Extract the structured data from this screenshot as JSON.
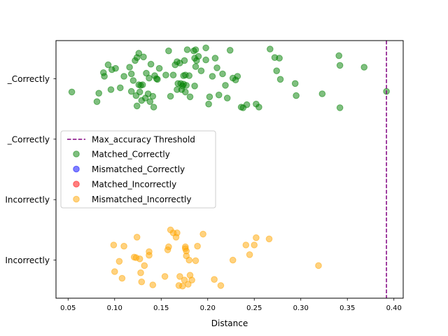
{
  "chart_data": {
    "type": "scatter",
    "title": "",
    "xlabel": "Distance",
    "ylabel": "",
    "xlim": [
      0.037,
      0.41
    ],
    "ylim": [
      -0.63,
      3.63
    ],
    "xticks": [
      0.05,
      0.1,
      0.15,
      0.2,
      0.25,
      0.3,
      0.35,
      0.4
    ],
    "xtick_labels": [
      "0.05",
      "0.10",
      "0.15",
      "0.20",
      "0.25",
      "0.30",
      "0.35",
      "0.40"
    ],
    "ytick_labels": [
      "Mismatched_Incorrectly",
      "Matched_Incorrectly",
      "Mismatched_Correctly",
      "Matched_Correctly"
    ],
    "ytick_visible_labels": [
      "Incorrectly",
      "Incorrectly",
      "_Correctly",
      "_Correctly"
    ],
    "grid": false,
    "legend_position": "center-left",
    "threshold": {
      "name": "Max_accuracy Threshold",
      "x": 0.392,
      "color": "#800080",
      "style": "dashed"
    },
    "series": [
      {
        "name": "Matched_Correctly",
        "color": "#008000",
        "category_index": 3,
        "points": [
          [
            0.054,
            -0.22
          ],
          [
            0.081,
            -0.38
          ],
          [
            0.083,
            -0.24
          ],
          [
            0.088,
            0.1
          ],
          [
            0.089,
            0.04
          ],
          [
            0.093,
            0.23
          ],
          [
            0.096,
            -0.18
          ],
          [
            0.097,
            0.15
          ],
          [
            0.101,
            0.17
          ],
          [
            0.106,
            -0.15
          ],
          [
            0.11,
            0.04
          ],
          [
            0.116,
            0.19
          ],
          [
            0.118,
            -0.21
          ],
          [
            0.118,
            0.08
          ],
          [
            0.12,
            -0.03
          ],
          [
            0.122,
            0.3
          ],
          [
            0.123,
            -0.28
          ],
          [
            0.124,
            0.35
          ],
          [
            0.124,
            -0.45
          ],
          [
            0.126,
            0.42
          ],
          [
            0.126,
            -0.1
          ],
          [
            0.127,
            -0.22
          ],
          [
            0.128,
            -0.11
          ],
          [
            0.129,
            -0.36
          ],
          [
            0.13,
            -0.1
          ],
          [
            0.131,
            0.36
          ],
          [
            0.133,
            -0.32
          ],
          [
            0.134,
            0.09
          ],
          [
            0.136,
            -0.25
          ],
          [
            0.137,
            0.01
          ],
          [
            0.138,
            -0.38
          ],
          [
            0.139,
            0.24
          ],
          [
            0.141,
            -0.29
          ],
          [
            0.142,
            -0.47
          ],
          [
            0.143,
            0.05
          ],
          [
            0.145,
            0.0
          ],
          [
            0.146,
            -0.01
          ],
          [
            0.148,
            0.17
          ],
          [
            0.155,
            0.06
          ],
          [
            0.158,
            0.46
          ],
          [
            0.16,
            -0.29
          ],
          [
            0.163,
            0.06
          ],
          [
            0.165,
            0.23
          ],
          [
            0.167,
            -0.18
          ],
          [
            0.167,
            0.28
          ],
          [
            0.168,
            -0.08
          ],
          [
            0.17,
            0.26
          ],
          [
            0.171,
            -0.08
          ],
          [
            0.172,
            -0.18
          ],
          [
            0.173,
            -0.12
          ],
          [
            0.174,
            0.05
          ],
          [
            0.174,
            -0.09
          ],
          [
            0.175,
            0.3
          ],
          [
            0.176,
            -0.22
          ],
          [
            0.176,
            0.06
          ],
          [
            0.177,
            -0.11
          ],
          [
            0.178,
            0.48
          ],
          [
            0.18,
            0.05
          ],
          [
            0.181,
            -0.3
          ],
          [
            0.185,
            0.46
          ],
          [
            0.186,
            -0.12
          ],
          [
            0.186,
            0.34
          ],
          [
            0.187,
            0.48
          ],
          [
            0.187,
            0.2
          ],
          [
            0.188,
            0.3
          ],
          [
            0.19,
            0.37
          ],
          [
            0.193,
            0.13
          ],
          [
            0.198,
            0.51
          ],
          [
            0.198,
            0.31
          ],
          [
            0.201,
            -0.42
          ],
          [
            0.202,
            -0.3
          ],
          [
            0.205,
            0.04
          ],
          [
            0.208,
            0.34
          ],
          [
            0.21,
            0.18
          ],
          [
            0.212,
            -0.27
          ],
          [
            0.216,
            0.08
          ],
          [
            0.219,
            -0.11
          ],
          [
            0.221,
            -0.32
          ],
          [
            0.224,
            0.47
          ],
          [
            0.227,
            0.01
          ],
          [
            0.23,
            -0.02
          ],
          [
            0.232,
            0.04
          ],
          [
            0.236,
            -0.47
          ],
          [
            0.238,
            -0.48
          ],
          [
            0.242,
            -0.43
          ],
          [
            0.252,
            -0.42
          ],
          [
            0.255,
            -0.47
          ],
          [
            0.267,
            0.49
          ],
          [
            0.272,
            0.35
          ],
          [
            0.274,
            0.13
          ],
          [
            0.277,
            0.34
          ],
          [
            0.278,
            -0.01
          ],
          [
            0.294,
            -0.08
          ],
          [
            0.295,
            -0.28
          ],
          [
            0.323,
            -0.25
          ],
          [
            0.341,
            0.38
          ],
          [
            0.342,
            0.22
          ],
          [
            0.342,
            -0.48
          ],
          [
            0.368,
            0.19
          ],
          [
            0.392,
            -0.21
          ]
        ]
      },
      {
        "name": "Mismatched_Correctly",
        "color": "#0000ff",
        "category_index": 2,
        "points": []
      },
      {
        "name": "Matched_Incorrectly",
        "color": "#ff0000",
        "category_index": 1,
        "points": []
      },
      {
        "name": "Mismatched_Incorrectly",
        "color": "#ffa500",
        "category_index": 0,
        "points": [
          [
            0.099,
            0.25
          ],
          [
            0.1,
            -0.19
          ],
          [
            0.105,
            -0.02
          ],
          [
            0.108,
            -0.3
          ],
          [
            0.11,
            0.23
          ],
          [
            0.121,
            0.05
          ],
          [
            0.123,
            0.04
          ],
          [
            0.124,
            0.38
          ],
          [
            0.127,
            0.02
          ],
          [
            0.128,
            -0.21
          ],
          [
            0.129,
            -0.36
          ],
          [
            0.132,
            -0.09
          ],
          [
            0.137,
            0.14
          ],
          [
            0.137,
            0.08
          ],
          [
            0.141,
            -0.41
          ],
          [
            0.154,
            -0.27
          ],
          [
            0.157,
            0.17
          ],
          [
            0.158,
            0.22
          ],
          [
            0.16,
            0.5
          ],
          [
            0.163,
            0.45
          ],
          [
            0.166,
            0.38
          ],
          [
            0.167,
            0.45
          ],
          [
            0.169,
            -0.42
          ],
          [
            0.17,
            -0.27
          ],
          [
            0.173,
            -0.43
          ],
          [
            0.175,
            -0.33
          ],
          [
            0.176,
            0.19
          ],
          [
            0.176,
            0.22
          ],
          [
            0.177,
            0.15
          ],
          [
            0.177,
            0.07
          ],
          [
            0.179,
            -0.4
          ],
          [
            0.18,
            0.0
          ],
          [
            0.181,
            -0.25
          ],
          [
            0.183,
            -0.33
          ],
          [
            0.187,
            -0.01
          ],
          [
            0.189,
            0.23
          ],
          [
            0.195,
            0.43
          ],
          [
            0.207,
            -0.32
          ],
          [
            0.214,
            -0.42
          ],
          [
            0.227,
            0.0
          ],
          [
            0.241,
            0.25
          ],
          [
            0.245,
            0.09
          ],
          [
            0.25,
            0.25
          ],
          [
            0.252,
            0.37
          ],
          [
            0.266,
            0.35
          ],
          [
            0.319,
            -0.09
          ]
        ]
      }
    ]
  }
}
